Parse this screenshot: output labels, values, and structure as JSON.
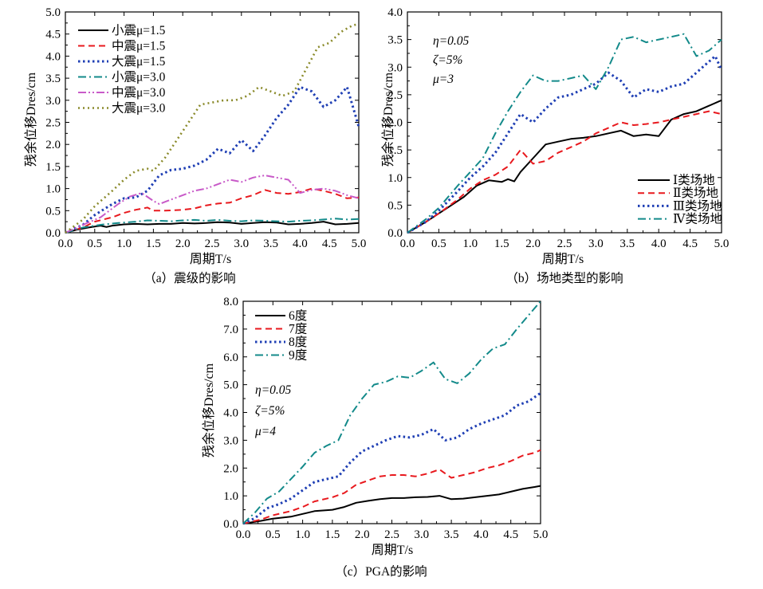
{
  "chart_data": [
    {
      "id": "a",
      "type": "line",
      "caption": "（a）震级的影响",
      "xlabel": "周期T/s",
      "ylabel": "残余位移Dres/cm",
      "xlim": [
        0,
        5
      ],
      "ylim": [
        0,
        5
      ],
      "xticks": [
        "0.0",
        "0.5",
        "1.0",
        "1.5",
        "2.0",
        "2.5",
        "3.0",
        "3.5",
        "4.0",
        "4.5",
        "5.0"
      ],
      "yticks": [
        "0.0",
        "0.5",
        "1.0",
        "1.5",
        "2.0",
        "2.5",
        "3.0",
        "3.5",
        "4.0",
        "4.5",
        "5.0"
      ],
      "legend_position": "top-left",
      "notes": [],
      "series": [
        {
          "name": "小震μ=1.5",
          "color": "#000000",
          "dash": "solid",
          "x": [
            0,
            0.2,
            0.4,
            0.6,
            0.7,
            0.8,
            1.0,
            1.2,
            1.4,
            1.6,
            1.8,
            2.0,
            2.2,
            2.4,
            2.6,
            2.8,
            3.0,
            3.2,
            3.4,
            3.6,
            3.8,
            4.0,
            4.2,
            4.4,
            4.6,
            4.8,
            5.0
          ],
          "y": [
            0,
            0.07,
            0.12,
            0.16,
            0.13,
            0.16,
            0.19,
            0.2,
            0.19,
            0.2,
            0.2,
            0.22,
            0.21,
            0.22,
            0.24,
            0.23,
            0.2,
            0.22,
            0.24,
            0.23,
            0.19,
            0.2,
            0.22,
            0.25,
            0.19,
            0.2,
            0.22
          ]
        },
        {
          "name": "中震μ=1.5",
          "color": "#e8191e",
          "dash": "dash",
          "x": [
            0,
            0.3,
            0.5,
            0.8,
            1.0,
            1.2,
            1.4,
            1.5,
            1.7,
            2.0,
            2.2,
            2.4,
            2.6,
            2.8,
            3.0,
            3.2,
            3.4,
            3.6,
            3.8,
            4.0,
            4.2,
            4.4,
            4.6,
            4.8,
            5.0
          ],
          "y": [
            0,
            0.12,
            0.25,
            0.35,
            0.45,
            0.52,
            0.57,
            0.5,
            0.5,
            0.52,
            0.55,
            0.62,
            0.66,
            0.68,
            0.78,
            0.85,
            0.97,
            0.9,
            0.88,
            0.92,
            1.0,
            0.95,
            0.88,
            0.78,
            0.8
          ]
        },
        {
          "name": "大震μ=1.5",
          "color": "#1f3fb4",
          "dash": "dot",
          "x": [
            0,
            0.3,
            0.5,
            0.8,
            1.0,
            1.2,
            1.4,
            1.6,
            1.8,
            2.0,
            2.2,
            2.4,
            2.6,
            2.8,
            3.0,
            3.2,
            3.4,
            3.6,
            3.8,
            4.0,
            4.2,
            4.4,
            4.6,
            4.8,
            5.0
          ],
          "y": [
            0,
            0.18,
            0.4,
            0.65,
            0.78,
            0.8,
            0.95,
            1.3,
            1.42,
            1.45,
            1.52,
            1.65,
            1.9,
            1.8,
            2.1,
            1.85,
            2.2,
            2.6,
            2.9,
            3.3,
            3.2,
            2.85,
            3.0,
            3.3,
            2.4
          ]
        },
        {
          "name": "小震μ=3.0",
          "color": "#138a8a",
          "dash": "dashdot",
          "x": [
            0,
            0.3,
            0.6,
            0.9,
            1.2,
            1.4,
            1.6,
            1.8,
            2.0,
            2.2,
            2.4,
            2.6,
            2.8,
            3.0,
            3.2,
            3.4,
            3.6,
            3.8,
            4.0,
            4.2,
            4.4,
            4.6,
            4.8,
            5.0
          ],
          "y": [
            0,
            0.12,
            0.18,
            0.22,
            0.25,
            0.28,
            0.27,
            0.26,
            0.28,
            0.29,
            0.27,
            0.29,
            0.27,
            0.26,
            0.28,
            0.27,
            0.26,
            0.25,
            0.27,
            0.28,
            0.3,
            0.32,
            0.3,
            0.31
          ]
        },
        {
          "name": "中震μ=3.0",
          "color": "#c85ac8",
          "dash": "dashdotdot",
          "x": [
            0,
            0.3,
            0.6,
            0.9,
            1.1,
            1.3,
            1.5,
            1.6,
            1.8,
            2.0,
            2.2,
            2.4,
            2.6,
            2.8,
            3.0,
            3.2,
            3.4,
            3.6,
            3.8,
            4.0,
            4.2,
            4.4,
            4.6,
            4.8,
            5.0
          ],
          "y": [
            0,
            0.18,
            0.35,
            0.65,
            0.82,
            0.9,
            0.72,
            0.65,
            0.75,
            0.85,
            0.95,
            1.0,
            1.1,
            1.2,
            1.15,
            1.25,
            1.3,
            1.25,
            1.2,
            0.9,
            0.97,
            1.0,
            0.95,
            0.85,
            0.78
          ]
        },
        {
          "name": "大震μ=3.0",
          "color": "#8a8a2a",
          "dash": "dotted",
          "x": [
            0,
            0.3,
            0.5,
            0.8,
            1.0,
            1.2,
            1.4,
            1.5,
            1.7,
            1.9,
            2.1,
            2.3,
            2.5,
            2.7,
            2.9,
            3.1,
            3.3,
            3.5,
            3.7,
            3.9,
            4.1,
            4.3,
            4.5,
            4.7,
            4.9,
            5.0
          ],
          "y": [
            0,
            0.3,
            0.6,
            0.95,
            1.2,
            1.4,
            1.45,
            1.4,
            1.7,
            2.1,
            2.5,
            2.9,
            2.95,
            3.0,
            3.0,
            3.1,
            3.3,
            3.2,
            3.1,
            3.2,
            3.7,
            4.2,
            4.3,
            4.55,
            4.7,
            4.72
          ]
        }
      ]
    },
    {
      "id": "b",
      "type": "line",
      "caption": "（b）场地类型的影响",
      "xlabel": "周期T/s",
      "ylabel": "残余位移Dres/cm",
      "xlim": [
        0,
        5
      ],
      "ylim": [
        0,
        4
      ],
      "xticks": [
        "0.0",
        "0.5",
        "1.0",
        "1.5",
        "2.0",
        "2.5",
        "3.0",
        "3.5",
        "4.0",
        "4.5",
        "5.0"
      ],
      "yticks": [
        "0.0",
        "0.5",
        "1.0",
        "1.5",
        "2.0",
        "2.5",
        "3.0",
        "3.5",
        "4.0"
      ],
      "legend_position": "bottom-right",
      "notes": [
        "η=0.05",
        "ζ=5%",
        "μ=3"
      ],
      "series": [
        {
          "name": "Ⅰ类场地",
          "color": "#000000",
          "dash": "solid",
          "x": [
            0,
            0.3,
            0.5,
            0.7,
            0.9,
            1.1,
            1.3,
            1.5,
            1.6,
            1.7,
            1.8,
            2.0,
            2.2,
            2.4,
            2.6,
            2.8,
            3.0,
            3.2,
            3.4,
            3.6,
            3.8,
            4.0,
            4.2,
            4.4,
            4.6,
            4.8,
            5.0
          ],
          "y": [
            0,
            0.2,
            0.35,
            0.5,
            0.65,
            0.85,
            0.95,
            0.92,
            0.97,
            0.93,
            1.1,
            1.35,
            1.6,
            1.65,
            1.7,
            1.72,
            1.75,
            1.8,
            1.85,
            1.75,
            1.78,
            1.75,
            2.05,
            2.15,
            2.2,
            2.3,
            2.4
          ]
        },
        {
          "name": "Ⅱ类场地",
          "color": "#e8191e",
          "dash": "dash",
          "x": [
            0,
            0.3,
            0.5,
            0.8,
            1.0,
            1.2,
            1.4,
            1.6,
            1.8,
            2.0,
            2.2,
            2.4,
            2.6,
            2.8,
            3.0,
            3.2,
            3.4,
            3.6,
            3.8,
            4.0,
            4.2,
            4.4,
            4.6,
            4.8,
            5.0
          ],
          "y": [
            0,
            0.2,
            0.35,
            0.6,
            0.8,
            0.95,
            1.05,
            1.2,
            1.5,
            1.25,
            1.3,
            1.45,
            1.55,
            1.65,
            1.8,
            1.9,
            2.0,
            1.95,
            1.97,
            2.0,
            2.05,
            2.1,
            2.15,
            2.2,
            2.15
          ]
        },
        {
          "name": "Ⅲ类场地",
          "color": "#1f3fb4",
          "dash": "dot",
          "x": [
            0,
            0.3,
            0.5,
            0.8,
            1.0,
            1.2,
            1.4,
            1.6,
            1.8,
            2.0,
            2.2,
            2.4,
            2.6,
            2.8,
            3.0,
            3.2,
            3.4,
            3.6,
            3.8,
            4.0,
            4.2,
            4.4,
            4.6,
            4.8,
            4.9,
            5.0
          ],
          "y": [
            0,
            0.2,
            0.4,
            0.75,
            1.0,
            1.2,
            1.45,
            1.8,
            2.15,
            2.0,
            2.25,
            2.45,
            2.5,
            2.6,
            2.7,
            2.9,
            2.75,
            2.45,
            2.6,
            2.55,
            2.65,
            2.7,
            2.9,
            3.1,
            3.2,
            2.95
          ]
        },
        {
          "name": "Ⅳ类场地",
          "color": "#138a8a",
          "dash": "dashdot",
          "x": [
            0,
            0.3,
            0.5,
            0.8,
            1.0,
            1.2,
            1.4,
            1.6,
            1.8,
            2.0,
            2.2,
            2.4,
            2.6,
            2.8,
            3.0,
            3.2,
            3.4,
            3.6,
            3.8,
            4.0,
            4.2,
            4.4,
            4.6,
            4.8,
            5.0
          ],
          "y": [
            0,
            0.25,
            0.45,
            0.85,
            1.1,
            1.35,
            1.8,
            2.2,
            2.55,
            2.85,
            2.75,
            2.75,
            2.8,
            2.85,
            2.6,
            3.0,
            3.5,
            3.55,
            3.45,
            3.5,
            3.55,
            3.6,
            3.2,
            3.3,
            3.5
          ]
        }
      ]
    },
    {
      "id": "c",
      "type": "line",
      "caption": "（c）PGA的影响",
      "xlabel": "周期T/s",
      "ylabel": "残余位移Dres/cm",
      "xlim": [
        0,
        5
      ],
      "ylim": [
        0,
        8
      ],
      "xticks": [
        "0.0",
        "0.5",
        "1.0",
        "1.5",
        "2.0",
        "2.5",
        "3.0",
        "3.5",
        "4.0",
        "4.5",
        "5.0"
      ],
      "yticks": [
        "0.0",
        "1.0",
        "2.0",
        "3.0",
        "4.0",
        "5.0",
        "6.0",
        "7.0",
        "8.0"
      ],
      "legend_position": "top-left",
      "notes": [
        "η=0.05",
        "ζ=5%",
        "μ=4"
      ],
      "series": [
        {
          "name": "6度",
          "color": "#000000",
          "dash": "solid",
          "x": [
            0,
            0.3,
            0.5,
            0.8,
            1.0,
            1.2,
            1.5,
            1.7,
            1.9,
            2.1,
            2.3,
            2.5,
            2.7,
            2.9,
            3.1,
            3.3,
            3.5,
            3.7,
            3.9,
            4.1,
            4.3,
            4.5,
            4.7,
            4.9,
            5.0
          ],
          "y": [
            0,
            0.1,
            0.18,
            0.25,
            0.35,
            0.45,
            0.5,
            0.6,
            0.75,
            0.82,
            0.88,
            0.92,
            0.92,
            0.95,
            0.96,
            1.0,
            0.88,
            0.9,
            0.95,
            1.0,
            1.05,
            1.15,
            1.25,
            1.32,
            1.36
          ]
        },
        {
          "name": "7度",
          "color": "#e8191e",
          "dash": "dash",
          "x": [
            0,
            0.3,
            0.5,
            0.8,
            1.0,
            1.2,
            1.5,
            1.7,
            1.9,
            2.1,
            2.3,
            2.5,
            2.7,
            2.9,
            3.1,
            3.3,
            3.5,
            3.7,
            3.9,
            4.1,
            4.3,
            4.5,
            4.7,
            4.9,
            5.0
          ],
          "y": [
            0,
            0.15,
            0.3,
            0.45,
            0.6,
            0.8,
            0.95,
            1.1,
            1.4,
            1.55,
            1.7,
            1.75,
            1.75,
            1.7,
            1.8,
            1.95,
            1.65,
            1.75,
            1.85,
            2.0,
            2.1,
            2.25,
            2.45,
            2.55,
            2.65
          ]
        },
        {
          "name": "8度",
          "color": "#1f3fb4",
          "dash": "dot",
          "x": [
            0,
            0.2,
            0.4,
            0.6,
            0.8,
            1.0,
            1.2,
            1.4,
            1.6,
            1.8,
            2.0,
            2.2,
            2.4,
            2.6,
            2.8,
            3.0,
            3.2,
            3.4,
            3.6,
            3.8,
            4.0,
            4.2,
            4.4,
            4.6,
            4.8,
            5.0
          ],
          "y": [
            0,
            0.2,
            0.55,
            0.7,
            0.9,
            1.2,
            1.5,
            1.6,
            1.7,
            2.2,
            2.6,
            2.8,
            3.0,
            3.15,
            3.1,
            3.2,
            3.4,
            3.0,
            3.1,
            3.4,
            3.6,
            3.75,
            3.9,
            4.25,
            4.4,
            4.7
          ]
        },
        {
          "name": "9度",
          "color": "#138a8a",
          "dash": "dashdot",
          "x": [
            0,
            0.2,
            0.4,
            0.6,
            0.8,
            1.0,
            1.2,
            1.4,
            1.6,
            1.8,
            2.0,
            2.2,
            2.4,
            2.6,
            2.8,
            3.0,
            3.2,
            3.4,
            3.6,
            3.8,
            4.0,
            4.2,
            4.4,
            4.6,
            4.8,
            5.0
          ],
          "y": [
            0,
            0.4,
            0.9,
            1.15,
            1.6,
            2.05,
            2.55,
            2.8,
            3.0,
            3.9,
            4.5,
            5.0,
            5.1,
            5.3,
            5.25,
            5.5,
            5.8,
            5.2,
            5.05,
            5.4,
            5.9,
            6.3,
            6.45,
            7.0,
            7.5,
            8.0
          ]
        }
      ]
    }
  ]
}
